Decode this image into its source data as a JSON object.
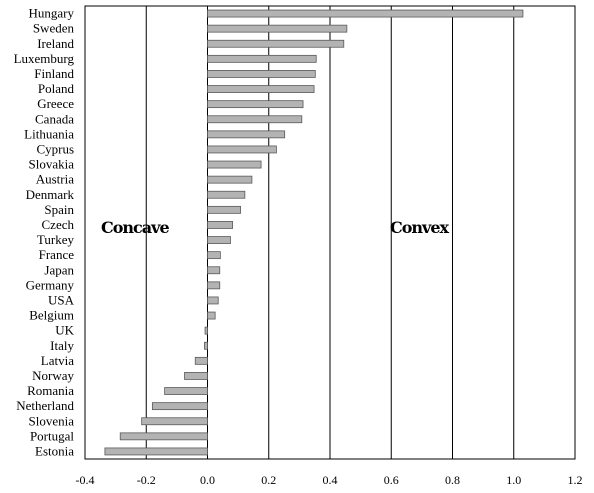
{
  "chart_data": {
    "type": "bar",
    "orientation": "horizontal",
    "categories": [
      "Hungary",
      "Sweden",
      "Ireland",
      "Luxemburg",
      "Finland",
      "Poland",
      "Greece",
      "Canada",
      "Lithuania",
      "Cyprus",
      "Slovakia",
      "Austria",
      "Denmark",
      "Spain",
      "Czech",
      "Turkey",
      "France",
      "Japan",
      "Germany",
      "USA",
      "Belgium",
      "UK",
      "Italy",
      "Latvia",
      "Norway",
      "Romania",
      "Netherland",
      "Slovenia",
      "Portugal",
      "Estonia"
    ],
    "values": [
      1.03,
      0.455,
      0.445,
      0.355,
      0.352,
      0.348,
      0.312,
      0.308,
      0.252,
      0.225,
      0.175,
      0.145,
      0.122,
      0.108,
      0.082,
      0.075,
      0.042,
      0.04,
      0.04,
      0.035,
      0.025,
      -0.008,
      -0.01,
      -0.04,
      -0.075,
      -0.14,
      -0.18,
      -0.215,
      -0.285,
      -0.335
    ],
    "xlim": [
      -0.4,
      1.2
    ],
    "xticks": [
      "-0.4",
      "-0.2",
      "0.0",
      "0.2",
      "0.4",
      "0.6",
      "0.8",
      "1.0",
      "1.2"
    ],
    "grid": true,
    "annotations": {
      "left": "Concave",
      "right": "Convex"
    },
    "colors": {
      "bar_fill": "#b3b3b3",
      "bar_stroke": "#5a5a5a"
    }
  }
}
